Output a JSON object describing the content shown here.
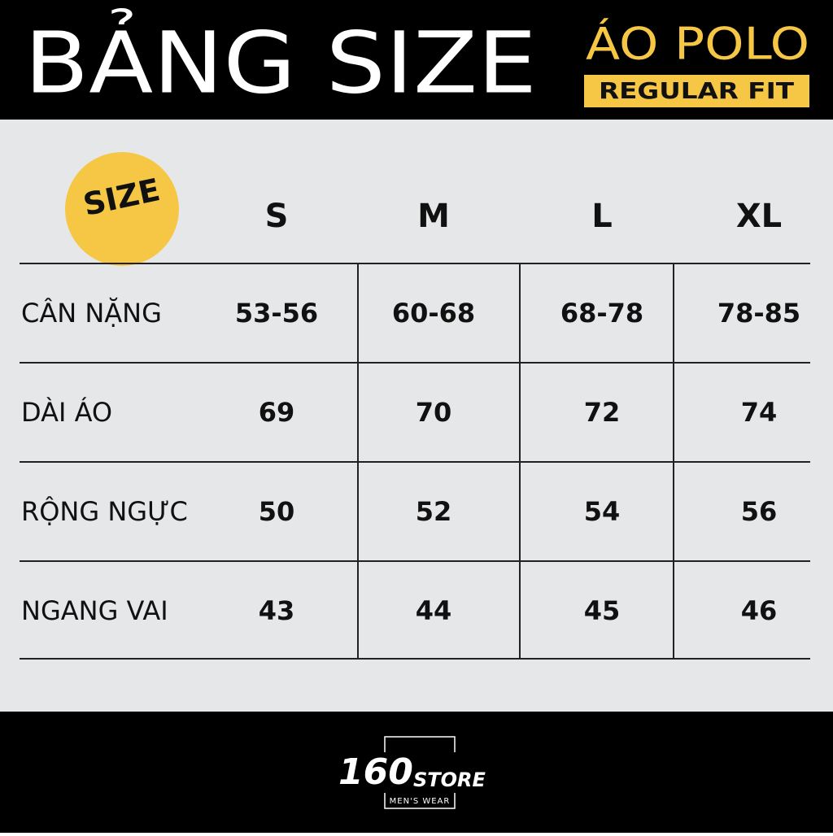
{
  "header": {
    "title": "BẢNG SIZE",
    "product": "ÁO POLO",
    "fit": "REGULAR FIT"
  },
  "table": {
    "corner": "SIZE",
    "columns": [
      "S",
      "M",
      "L",
      "XL"
    ],
    "rows": [
      {
        "label": "CÂN NẶNG",
        "values": [
          "53-56",
          "60-68",
          "68-78",
          "78-85"
        ]
      },
      {
        "label": "DÀI ÁO",
        "values": [
          69,
          70,
          72,
          74
        ]
      },
      {
        "label": "RỘNG NGỰC",
        "values": [
          50,
          52,
          54,
          56
        ]
      },
      {
        "label": "NGANG VAI",
        "values": [
          43,
          44,
          45,
          46
        ]
      }
    ]
  },
  "footer": {
    "brand_number": "160",
    "brand_word": "STORE",
    "tagline": "MEN'S WEAR"
  }
}
